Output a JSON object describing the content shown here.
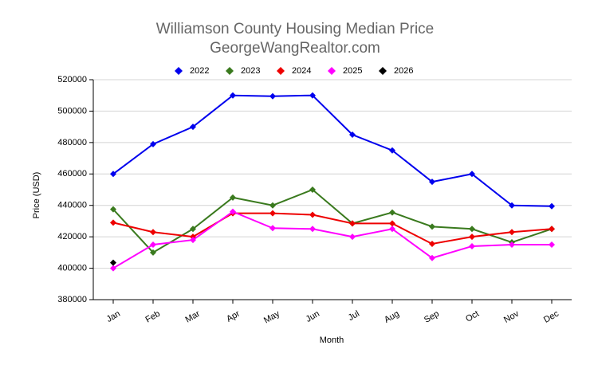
{
  "chart_data": {
    "type": "line",
    "title": "Williamson County Housing Median Price",
    "subtitle": "GeorgeWangRealtor.com",
    "x_label": "Month",
    "y_label": "Price (USD)",
    "categories": [
      "Jan",
      "Feb",
      "Mar",
      "Apr",
      "May",
      "Jun",
      "Jul",
      "Aug",
      "Sep",
      "Oct",
      "Nov",
      "Dec"
    ],
    "series": [
      {
        "name": "2022",
        "color": "#0000ee",
        "values": [
          460000,
          479000,
          490000,
          510000,
          509500,
          510000,
          485000,
          475000,
          455000,
          460000,
          440000,
          439500
        ]
      },
      {
        "name": "2023",
        "color": "#3a7a1e",
        "values": [
          437500,
          410000,
          425000,
          445000,
          440000,
          450000,
          428500,
          435500,
          426500,
          425000,
          416500,
          425000
        ]
      },
      {
        "name": "2024",
        "color": "#ee0000",
        "values": [
          429000,
          423000,
          420000,
          435000,
          435000,
          434000,
          428500,
          428500,
          415500,
          420000,
          423000,
          425000
        ]
      },
      {
        "name": "2025",
        "color": "#ff00ff",
        "values": [
          400000,
          415000,
          418000,
          436000,
          425500,
          425000,
          420000,
          425000,
          406500,
          414000,
          415000,
          415000
        ]
      },
      {
        "name": "2026",
        "color": "#000000",
        "values": [
          403500,
          null,
          null,
          null,
          null,
          null,
          null,
          null,
          null,
          null,
          null,
          null
        ]
      }
    ],
    "ylim": [
      380000,
      520000
    ],
    "yticks": [
      380000,
      400000,
      420000,
      440000,
      460000,
      480000,
      500000,
      520000
    ],
    "grid": true,
    "legend": "top"
  }
}
